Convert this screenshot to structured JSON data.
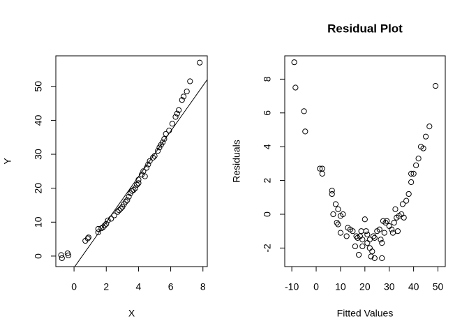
{
  "chart_data": [
    {
      "type": "scatter",
      "xlabel": "X",
      "ylabel": "Y",
      "xlim": [
        -1.13,
        8.27
      ],
      "ylim": [
        -3.1,
        59.0
      ],
      "xticks": [
        0,
        2,
        4,
        6,
        8
      ],
      "yticks": [
        0,
        10,
        20,
        30,
        40,
        50
      ],
      "abline": {
        "intercept": -3.4,
        "slope": 6.7
      },
      "x": [
        -0.8,
        -0.75,
        -0.4,
        -0.35,
        0.7,
        0.85,
        0.9,
        1.5,
        1.5,
        1.7,
        1.8,
        1.9,
        2.0,
        2.1,
        2.3,
        2.5,
        2.7,
        2.8,
        2.9,
        3.0,
        3.1,
        3.2,
        3.3,
        3.4,
        3.5,
        3.6,
        3.7,
        3.8,
        3.9,
        4.0,
        4.0,
        4.2,
        4.3,
        4.4,
        4.5,
        4.6,
        4.7,
        4.9,
        5.0,
        5.2,
        5.3,
        5.4,
        5.5,
        5.6,
        5.7,
        5.9,
        6.1,
        6.3,
        6.4,
        6.5,
        6.7,
        6.8,
        7.0,
        7.2,
        7.8
      ],
      "values": [
        0.3,
        -0.6,
        0.8,
        0.2,
        4.5,
        5.2,
        5.5,
        7,
        8,
        8.2,
        8.5,
        9,
        9.5,
        10.5,
        11,
        12,
        13,
        13.5,
        14,
        14.5,
        15.3,
        16,
        16.5,
        17.5,
        18.5,
        19.2,
        19.5,
        20,
        21,
        21.5,
        22.5,
        24,
        25,
        23.5,
        26,
        27,
        28,
        29,
        29.5,
        31,
        32,
        32.8,
        33.5,
        34.5,
        36,
        37,
        39,
        41,
        42,
        43,
        46,
        47,
        48.5,
        51.5,
        57
      ]
    },
    {
      "type": "scatter",
      "title": "Residual Plot",
      "xlabel": "Fitted Values",
      "ylabel": "Residuals",
      "xlim": [
        -12.9,
        53.0
      ],
      "ylim": [
        -3.1,
        9.38
      ],
      "xticks": [
        -10,
        0,
        10,
        20,
        30,
        40,
        50
      ],
      "yticks": [
        -2,
        0,
        2,
        4,
        6,
        8
      ],
      "x": [
        -9,
        -8.5,
        -5,
        -4.5,
        1.5,
        2.5,
        2.5,
        6.5,
        6.5,
        7,
        8,
        8.5,
        9,
        9,
        10,
        10,
        11,
        12.5,
        13,
        14,
        15,
        16,
        16.5,
        17,
        17.5,
        18,
        18.5,
        19,
        19,
        20,
        20.5,
        21,
        21,
        22,
        22,
        22.5,
        23,
        23.5,
        24,
        24,
        25,
        26,
        26.5,
        27,
        27,
        27.5,
        28,
        28.5,
        29,
        30,
        31,
        31.5,
        32,
        32.5,
        33,
        33.5,
        34,
        35,
        35.5,
        36,
        37,
        38,
        39,
        39,
        40,
        41,
        42,
        43,
        44,
        45,
        46.5,
        49
      ],
      "values": [
        9,
        7.5,
        6.1,
        4.9,
        2.7,
        2.7,
        2.4,
        1.4,
        1.2,
        0,
        0.6,
        -0.5,
        -0.6,
        0.3,
        -0.1,
        -1.1,
        0,
        -1.3,
        -0.8,
        -0.9,
        -1.0,
        -1.9,
        -1.3,
        -1.4,
        -2.4,
        -1.3,
        -1.0,
        -1.5,
        -1.9,
        -0.3,
        -1.0,
        -1.2,
        -1.7,
        -1.5,
        -2.0,
        -2.5,
        -2.2,
        -1.3,
        -1.4,
        -2.6,
        -1.0,
        -0.9,
        -1.5,
        -2.6,
        -1.7,
        -0.4,
        -1.1,
        -0.5,
        -0.4,
        -0.7,
        -0.9,
        -1.1,
        -0.5,
        0.3,
        -0.2,
        -1.0,
        -0.1,
        0,
        0.6,
        -0.2,
        0.8,
        1.2,
        2.4,
        1.9,
        2.4,
        2.9,
        3.3,
        4.0,
        3.9,
        4.6,
        5.2,
        7.6
      ]
    }
  ]
}
